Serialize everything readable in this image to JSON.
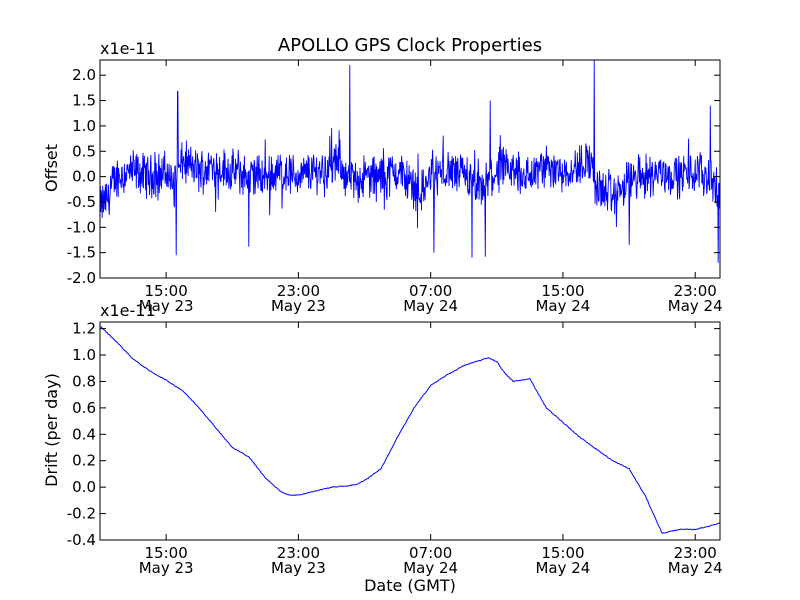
{
  "figure": {
    "title": "APOLLO GPS Clock Properties"
  },
  "chart_data": [
    {
      "type": "line",
      "name": "offset-panel",
      "ylabel": "Offset",
      "xlabel": "",
      "scale_label": "x1e-11",
      "x_range_hours": [
        11.0,
        48.5
      ],
      "ylim": [
        -2.0,
        2.3
      ],
      "y_ticks": [
        -2.0,
        -1.5,
        -1.0,
        -0.5,
        0.0,
        0.5,
        1.0,
        1.5,
        2.0
      ],
      "y_tick_labels": [
        "-2.0",
        "-1.5",
        "-1.0",
        "-0.5",
        "0.0",
        "0.5",
        "1.0",
        "1.5",
        "2.0"
      ],
      "x_ticks": [
        {
          "hour": 15,
          "time": "15:00",
          "date": "May 23"
        },
        {
          "hour": 23,
          "time": "23:00",
          "date": "May 23"
        },
        {
          "hour": 31,
          "time": "07:00",
          "date": "May 24"
        },
        {
          "hour": 39,
          "time": "15:00",
          "date": "May 24"
        },
        {
          "hour": 47,
          "time": "23:00",
          "date": "May 24"
        }
      ],
      "grid": false,
      "series": [
        {
          "color": "#0000ff",
          "noise_amplitude": 0.35,
          "x": [
            11.0,
            11.5,
            12.0,
            13.0,
            14.0,
            15.0,
            15.5,
            16.0,
            16.5,
            17.0,
            18.0,
            19.0,
            20.0,
            21.0,
            22.0,
            23.0,
            24.0,
            25.0,
            25.5,
            26.0,
            27.0,
            28.0,
            29.0,
            30.0,
            30.5,
            31.0,
            32.0,
            33.0,
            34.0,
            35.0,
            36.0,
            37.0,
            38.0,
            39.0,
            40.0,
            40.5,
            41.0,
            42.0,
            43.0,
            44.0,
            45.0,
            46.0,
            47.0,
            48.0,
            48.5
          ],
          "y": [
            -0.6,
            -0.4,
            0.0,
            0.1,
            0.0,
            0.1,
            -0.2,
            0.3,
            0.2,
            0.1,
            0.2,
            0.1,
            0.0,
            0.0,
            0.1,
            0.0,
            0.1,
            0.2,
            0.3,
            -0.1,
            0.0,
            0.0,
            0.1,
            -0.2,
            -0.3,
            0.0,
            0.1,
            0.0,
            -0.3,
            0.1,
            0.1,
            0.0,
            0.2,
            0.1,
            0.2,
            0.4,
            -0.2,
            -0.4,
            -0.1,
            0.0,
            0.1,
            0.0,
            0.1,
            0.0,
            -0.5
          ]
        }
      ],
      "spikes": [
        {
          "x": 15.7,
          "y": 1.68
        },
        {
          "x": 15.6,
          "y": -1.55
        },
        {
          "x": 20.0,
          "y": -1.38
        },
        {
          "x": 26.1,
          "y": 2.2
        },
        {
          "x": 31.2,
          "y": -1.5
        },
        {
          "x": 33.5,
          "y": -1.6
        },
        {
          "x": 34.3,
          "y": -1.58
        },
        {
          "x": 34.6,
          "y": 1.5
        },
        {
          "x": 40.9,
          "y": 2.3
        },
        {
          "x": 43.0,
          "y": -1.35
        },
        {
          "x": 47.9,
          "y": 1.4
        },
        {
          "x": 48.4,
          "y": -1.7
        }
      ]
    },
    {
      "type": "line",
      "name": "drift-panel",
      "ylabel": "Drift (per day)",
      "xlabel": "Date (GMT)",
      "scale_label": "x1e-11",
      "x_range_hours": [
        11.0,
        48.5
      ],
      "ylim": [
        -0.4,
        1.25
      ],
      "y_ticks": [
        -0.4,
        -0.2,
        0.0,
        0.2,
        0.4,
        0.6,
        0.8,
        1.0,
        1.2
      ],
      "y_tick_labels": [
        "-0.4",
        "-0.2",
        "0.0",
        "0.2",
        "0.4",
        "0.6",
        "0.8",
        "1.0",
        "1.2"
      ],
      "x_ticks": [
        {
          "hour": 15,
          "time": "15:00",
          "date": "May 23"
        },
        {
          "hour": 23,
          "time": "23:00",
          "date": "May 23"
        },
        {
          "hour": 31,
          "time": "07:00",
          "date": "May 24"
        },
        {
          "hour": 39,
          "time": "15:00",
          "date": "May 24"
        },
        {
          "hour": 47,
          "time": "23:00",
          "date": "May 24"
        }
      ],
      "grid": false,
      "series": [
        {
          "color": "#0000ff",
          "x": [
            11.0,
            12.0,
            13.0,
            14.0,
            15.0,
            16.0,
            17.0,
            18.0,
            19.0,
            20.0,
            21.0,
            22.0,
            22.5,
            23.0,
            24.0,
            25.0,
            26.0,
            26.5,
            27.0,
            28.0,
            29.0,
            30.0,
            31.0,
            32.0,
            33.0,
            34.0,
            34.5,
            35.0,
            35.5,
            36.0,
            37.0,
            38.0,
            39.0,
            40.0,
            41.0,
            42.0,
            43.0,
            44.0,
            45.0,
            46.0,
            47.0,
            48.0,
            48.5
          ],
          "y": [
            1.22,
            1.1,
            0.97,
            0.88,
            0.81,
            0.73,
            0.6,
            0.45,
            0.3,
            0.23,
            0.07,
            -0.04,
            -0.06,
            -0.06,
            -0.03,
            0.0,
            0.01,
            0.02,
            0.05,
            0.14,
            0.38,
            0.6,
            0.77,
            0.85,
            0.92,
            0.96,
            0.98,
            0.95,
            0.86,
            0.8,
            0.82,
            0.6,
            0.49,
            0.38,
            0.29,
            0.2,
            0.14,
            -0.07,
            -0.35,
            -0.32,
            -0.32,
            -0.29,
            -0.27
          ]
        }
      ]
    }
  ]
}
